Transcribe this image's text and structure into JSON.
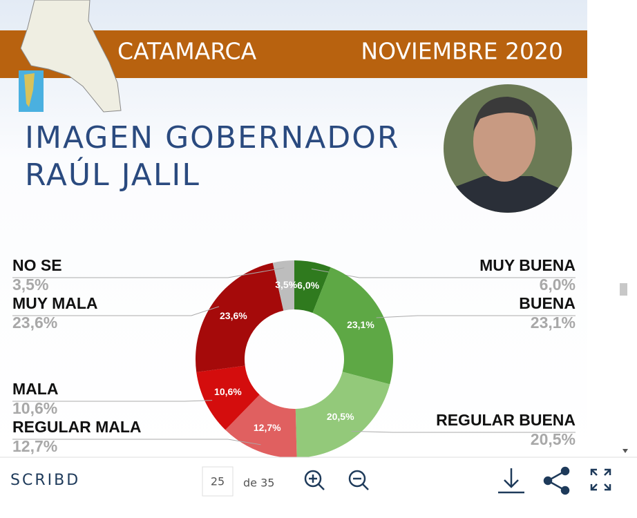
{
  "header": {
    "region": "CATAMARCA",
    "date": "NOVIEMBRE 2020"
  },
  "title_lines": [
    "IMAGEN GOBERNADOR",
    "RAÚL JALIL"
  ],
  "chart_data": {
    "type": "donut",
    "categories": [
      "MUY BUENA",
      "BUENA",
      "REGULAR BUENA",
      "REGULAR MALA",
      "MALA",
      "MUY MALA",
      "NO SE"
    ],
    "values": [
      6.0,
      23.1,
      20.5,
      12.7,
      10.6,
      23.6,
      3.5
    ],
    "value_labels": [
      "6,0%",
      "23,1%",
      "20,5%",
      "12,7%",
      "10,6%",
      "23,6%",
      "3,5%"
    ],
    "colors": [
      "#2f7a1e",
      "#5ea845",
      "#93c97a",
      "#e06060",
      "#d40d0d",
      "#a50a0a",
      "#bdbdbd"
    ]
  },
  "toolbar": {
    "brand": "SCRIBD",
    "page": "25",
    "page_total": "de 35"
  }
}
